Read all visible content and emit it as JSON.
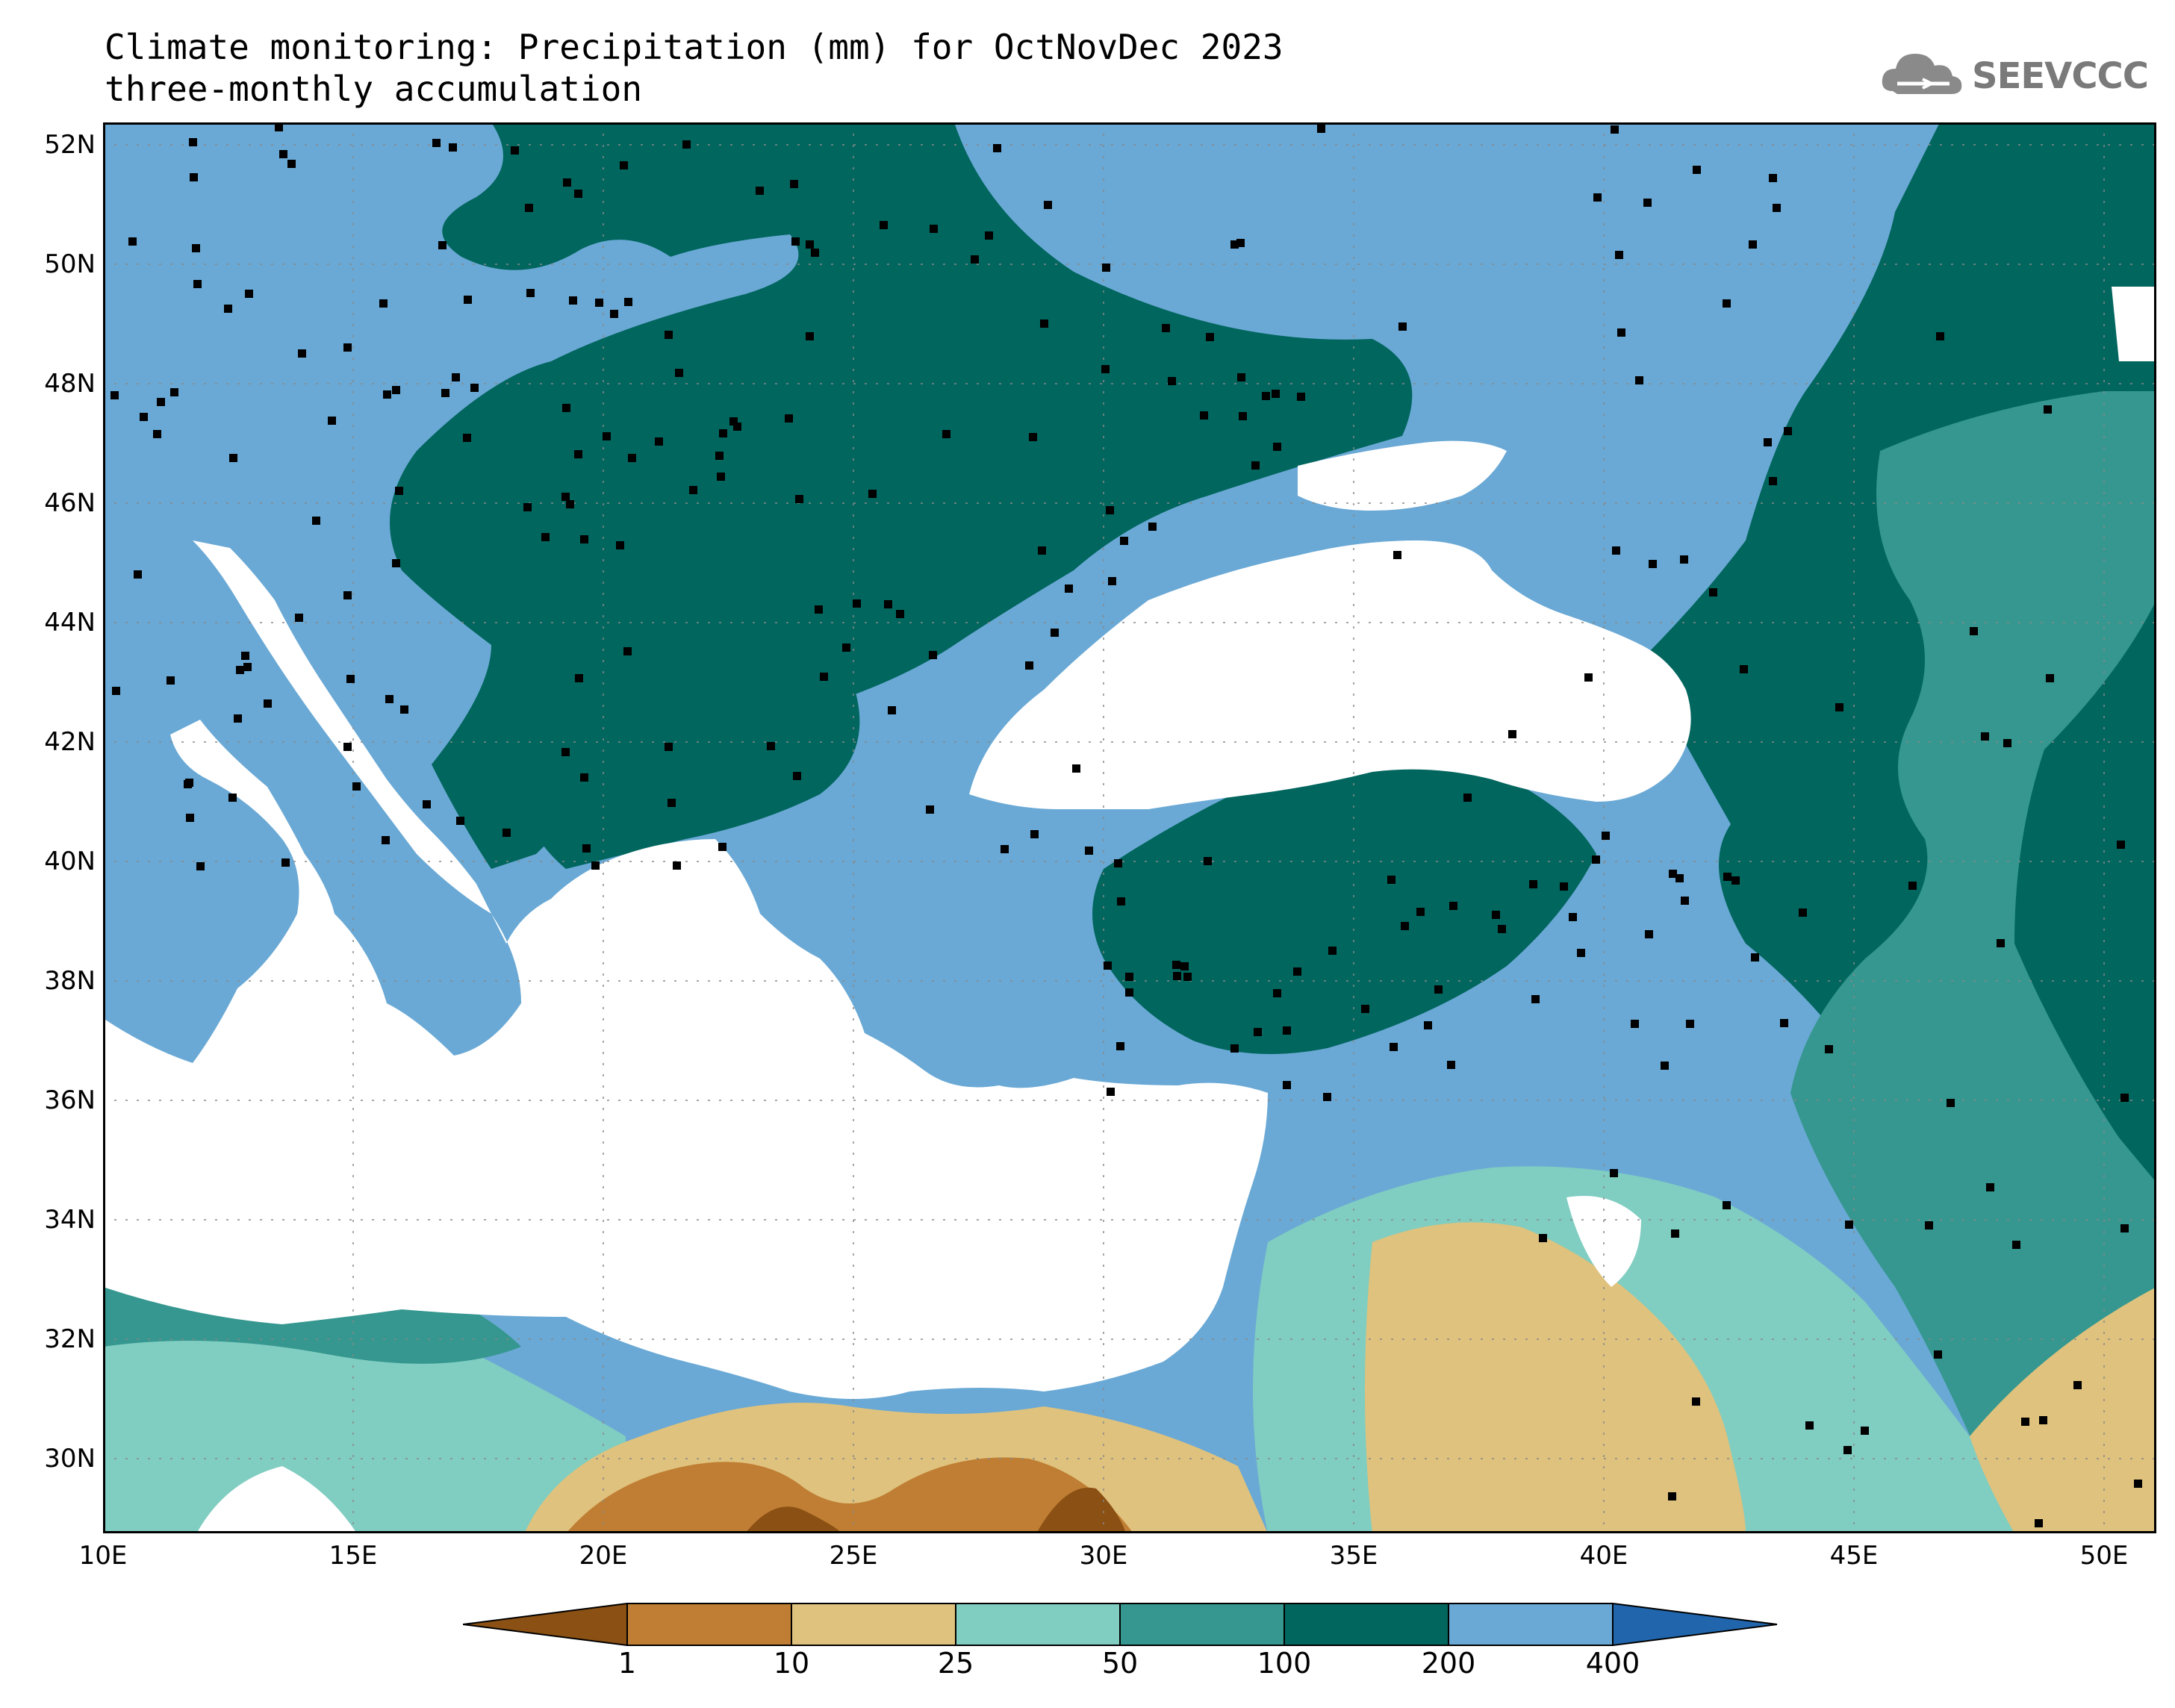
{
  "title": {
    "line1": "Climate monitoring: Precipitation (mm) for OctNovDec 2023",
    "line2": "three-monthly accumulation"
  },
  "logo": {
    "icon": "cloud-icon",
    "text": "SEEVCCC"
  },
  "map": {
    "lat_labels": [
      "52N",
      "50N",
      "48N",
      "46N",
      "44N",
      "42N",
      "40N",
      "38N",
      "36N",
      "34N",
      "32N",
      "30N"
    ],
    "lon_labels": [
      "10E",
      "15E",
      "20E",
      "25E",
      "30E",
      "35E",
      "40E",
      "45E",
      "50E"
    ],
    "extent": {
      "lon_min": 10,
      "lon_max": 51,
      "lat_min": 29,
      "lat_max": 52.5
    },
    "grid": "dotted"
  },
  "legend": {
    "levels": [
      "1",
      "10",
      "25",
      "50",
      "100",
      "200",
      "400"
    ],
    "colors": [
      "#8b5013",
      "#bf7e33",
      "#dfc27d",
      "#80cdc1",
      "#35978f",
      "#01665e",
      "#6aa9d5",
      "#2166ac"
    ]
  }
}
